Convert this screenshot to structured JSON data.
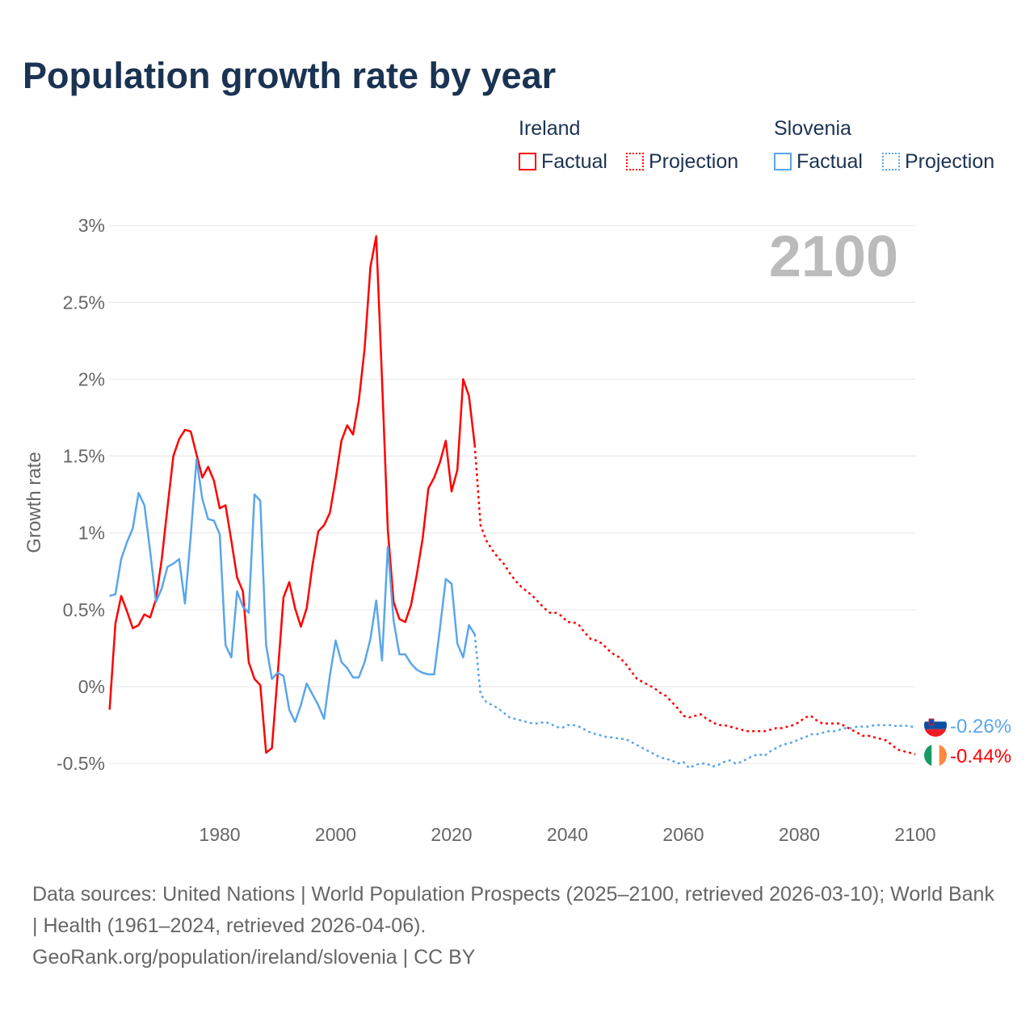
{
  "title": "Population growth rate by year",
  "legend": {
    "groups": [
      {
        "country": "Ireland",
        "factual": "Factual",
        "projection": "Projection"
      },
      {
        "country": "Slovenia",
        "factual": "Factual",
        "projection": "Projection"
      }
    ]
  },
  "colors": {
    "ireland": "#ff0000",
    "slovenia": "#5aa6ea",
    "grid": "#e6e6e6",
    "year": "#bbbbbb"
  },
  "chart_data": {
    "type": "line",
    "title": "Population growth rate by year",
    "ylabel": "Growth rate",
    "xlabel": "",
    "xlim": [
      1961,
      2100
    ],
    "ylim": [
      -0.7,
      3.1
    ],
    "yticks": [
      -0.5,
      0,
      0.5,
      1,
      1.5,
      2,
      2.5,
      3
    ],
    "ytick_labels": [
      "-0.5%",
      "0%",
      "0.5%",
      "1%",
      "1.5%",
      "2%",
      "2.5%",
      "3%"
    ],
    "xticks": [
      1980,
      2000,
      2020,
      2040,
      2060,
      2080,
      2100
    ],
    "xtick_labels": [
      "1980",
      "2000",
      "2020",
      "2040",
      "2060",
      "2080",
      "2100"
    ],
    "current_year_label": "2100",
    "grid": true,
    "legend_placement": "top-right",
    "series": [
      {
        "name": "Ireland",
        "kind": "Factual",
        "start": 1961,
        "values": [
          -0.15,
          0.41,
          0.59,
          0.49,
          0.38,
          0.4,
          0.47,
          0.45,
          0.57,
          0.83,
          1.17,
          1.5,
          1.61,
          1.67,
          1.66,
          1.51,
          1.36,
          1.43,
          1.34,
          1.16,
          1.18,
          0.95,
          0.71,
          0.62,
          0.16,
          0.05,
          0.01,
          -0.43,
          -0.4,
          0.08,
          0.58,
          0.68,
          0.51,
          0.39,
          0.51,
          0.79,
          1.01,
          1.05,
          1.13,
          1.35,
          1.6,
          1.7,
          1.64,
          1.86,
          2.2,
          2.73,
          2.93,
          2.0,
          1.02,
          0.55,
          0.44,
          0.42,
          0.53,
          0.73,
          0.96,
          1.29,
          1.36,
          1.46,
          1.6,
          1.27,
          1.41,
          2.0,
          1.89,
          1.57
        ]
      },
      {
        "name": "Ireland",
        "kind": "Projection",
        "start": 2025,
        "values": [
          1.05,
          0.95,
          0.89,
          0.84,
          0.8,
          0.74,
          0.69,
          0.65,
          0.62,
          0.59,
          0.55,
          0.51,
          0.48,
          0.48,
          0.46,
          0.42,
          0.42,
          0.4,
          0.35,
          0.31,
          0.3,
          0.28,
          0.24,
          0.21,
          0.19,
          0.15,
          0.1,
          0.05,
          0.03,
          0.01,
          -0.01,
          -0.04,
          -0.06,
          -0.1,
          -0.14,
          -0.19,
          -0.2,
          -0.19,
          -0.18,
          -0.21,
          -0.23,
          -0.25,
          -0.25,
          -0.26,
          -0.27,
          -0.28,
          -0.29,
          -0.29,
          -0.29,
          -0.29,
          -0.28,
          -0.27,
          -0.27,
          -0.26,
          -0.25,
          -0.23,
          -0.2,
          -0.19,
          -0.22,
          -0.24,
          -0.24,
          -0.24,
          -0.24,
          -0.26,
          -0.28,
          -0.3,
          -0.32,
          -0.32,
          -0.33,
          -0.34,
          -0.35,
          -0.38,
          -0.41,
          -0.42,
          -0.43,
          -0.44
        ]
      },
      {
        "name": "Slovenia",
        "kind": "Factual",
        "start": 1961,
        "values": [
          0.59,
          0.6,
          0.83,
          0.94,
          1.03,
          1.26,
          1.18,
          0.88,
          0.55,
          0.64,
          0.78,
          0.8,
          0.83,
          0.54,
          0.98,
          1.48,
          1.22,
          1.09,
          1.08,
          0.99,
          0.27,
          0.19,
          0.62,
          0.52,
          0.48,
          1.25,
          1.21,
          0.27,
          0.05,
          0.09,
          0.07,
          -0.15,
          -0.23,
          -0.12,
          0.02,
          -0.05,
          -0.12,
          -0.21,
          0.07,
          0.3,
          0.16,
          0.12,
          0.06,
          0.06,
          0.16,
          0.31,
          0.56,
          0.17,
          0.91,
          0.43,
          0.21,
          0.21,
          0.15,
          0.11,
          0.09,
          0.08,
          0.08,
          0.38,
          0.7,
          0.67,
          0.28,
          0.19,
          0.4,
          0.34
        ]
      },
      {
        "name": "Slovenia",
        "kind": "Projection",
        "start": 2025,
        "values": [
          -0.05,
          -0.1,
          -0.12,
          -0.14,
          -0.17,
          -0.2,
          -0.21,
          -0.22,
          -0.23,
          -0.24,
          -0.24,
          -0.23,
          -0.24,
          -0.26,
          -0.27,
          -0.25,
          -0.25,
          -0.26,
          -0.28,
          -0.3,
          -0.31,
          -0.32,
          -0.33,
          -0.33,
          -0.34,
          -0.34,
          -0.36,
          -0.38,
          -0.4,
          -0.42,
          -0.44,
          -0.46,
          -0.47,
          -0.48,
          -0.5,
          -0.49,
          -0.53,
          -0.51,
          -0.5,
          -0.5,
          -0.52,
          -0.51,
          -0.49,
          -0.48,
          -0.5,
          -0.49,
          -0.47,
          -0.45,
          -0.44,
          -0.45,
          -0.42,
          -0.4,
          -0.38,
          -0.37,
          -0.36,
          -0.34,
          -0.33,
          -0.31,
          -0.31,
          -0.3,
          -0.29,
          -0.29,
          -0.28,
          -0.27,
          -0.27,
          -0.26,
          -0.26,
          -0.26,
          -0.25,
          -0.25,
          -0.25,
          -0.25,
          -0.26,
          -0.25,
          -0.26,
          -0.26
        ]
      }
    ],
    "end_labels": [
      {
        "country": "Slovenia",
        "text": "-0.26%"
      },
      {
        "country": "Ireland",
        "text": "-0.44%"
      }
    ]
  },
  "footer": {
    "sources": "Data sources: United Nations | World Population Prospects (2025–2100, retrieved 2026-03-10); World Bank | Health (1961–2024, retrieved 2026-04-06).",
    "credit": "GeoRank.org/population/ireland/slovenia | CC BY"
  }
}
